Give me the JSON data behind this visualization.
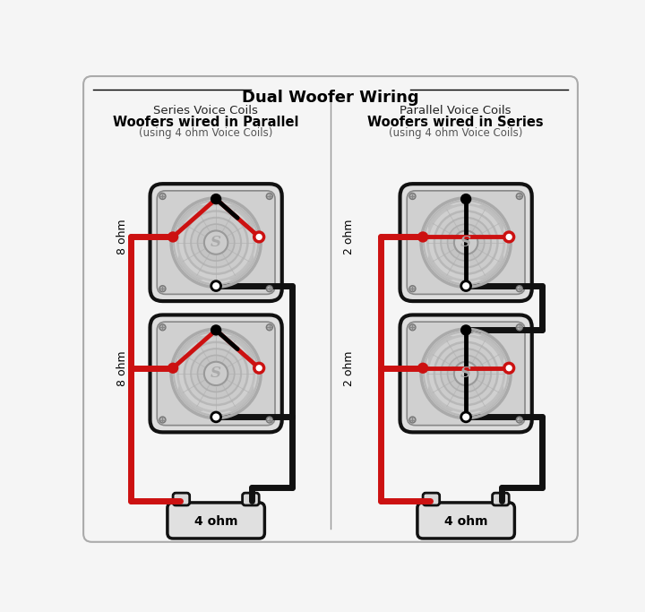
{
  "title": "Dual Woofer Wiring",
  "bg_color": "#f5f5f5",
  "left_title_line1": "Series Voice Coils",
  "left_title_line2": "Woofers wired in Parallel",
  "left_title_line3": "(using 4 ohm Voice Coils)",
  "right_title_line1": "Parallel Voice Coils",
  "right_title_line2": "Woofers wired in Series",
  "right_title_line3": "(using 4 ohm Voice Coils)",
  "left_ohm1": "8 ohm",
  "left_ohm2": "8 ohm",
  "right_ohm1": "2 ohm",
  "right_ohm2": "2 ohm",
  "bottom_ohm": "4 ohm",
  "red": "#cc1111",
  "black": "#111111",
  "wire_lw": 5,
  "box_edge": "#1a1a1a",
  "cone_bg": "#d8d8d8",
  "frame_bg": "#e8e8e8"
}
